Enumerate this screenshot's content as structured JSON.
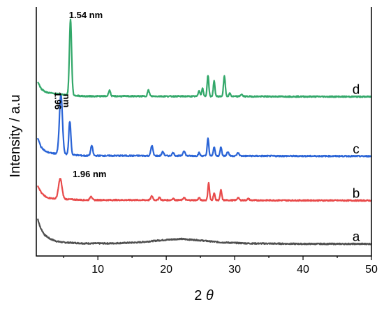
{
  "chart_data": {
    "type": "line",
    "xlabel_prefix": "2 ",
    "xlabel_symbol": "θ",
    "ylabel": "Intensity / a.u",
    "xlim": [
      1,
      50
    ],
    "xticks": [
      10,
      20,
      30,
      40,
      50
    ],
    "y_ticks_shown": false,
    "series": [
      {
        "name": "a",
        "color": "#505050",
        "baseline": 0.0,
        "noise": 0.12,
        "points": [
          [
            1.2,
            2.5
          ],
          [
            1.6,
            1.6
          ],
          [
            2.2,
            0.9
          ],
          [
            3,
            0.5
          ],
          [
            4,
            0.25
          ],
          [
            5,
            0.15
          ],
          [
            8,
            0.05
          ],
          [
            12,
            0.05
          ],
          [
            16,
            0.15
          ],
          [
            19,
            0.35
          ],
          [
            22,
            0.5
          ],
          [
            25,
            0.35
          ],
          [
            28,
            0.15
          ],
          [
            32,
            0.05
          ],
          [
            40,
            0.0
          ],
          [
            50,
            0.0
          ]
        ],
        "peaks": []
      },
      {
        "name": "b",
        "color": "#e84a4a",
        "baseline": 4.3,
        "noise": 0.12,
        "points": [
          [
            1.2,
            1.5
          ],
          [
            1.8,
            0.7
          ],
          [
            2.5,
            0.3
          ],
          [
            3.5,
            0.2
          ],
          [
            8,
            0.05
          ],
          [
            15,
            0.05
          ],
          [
            50,
            0.0
          ]
        ],
        "peaks": [
          [
            4.5,
            2.0,
            0.25
          ],
          [
            9.0,
            0.4,
            0.15
          ],
          [
            17.9,
            0.4,
            0.15
          ],
          [
            19.0,
            0.3,
            0.12
          ],
          [
            21.0,
            0.15,
            0.15
          ],
          [
            22.6,
            0.25,
            0.15
          ],
          [
            24.8,
            0.25,
            0.12
          ],
          [
            26.2,
            1.7,
            0.12
          ],
          [
            27.0,
            0.7,
            0.12
          ],
          [
            28.0,
            1.0,
            0.12
          ],
          [
            30.5,
            0.25,
            0.15
          ],
          [
            32.0,
            0.15,
            0.15
          ]
        ]
      },
      {
        "name": "c",
        "color": "#2a64d6",
        "baseline": 8.7,
        "noise": 0.12,
        "points": [
          [
            1.2,
            1.8
          ],
          [
            1.7,
            0.9
          ],
          [
            2.4,
            0.45
          ],
          [
            3.2,
            0.3
          ],
          [
            8,
            0.05
          ],
          [
            15,
            0.05
          ],
          [
            50,
            0.0
          ]
        ],
        "peaks": [
          [
            4.6,
            5.9,
            0.22
          ],
          [
            5.9,
            3.3,
            0.15
          ],
          [
            9.1,
            1.0,
            0.15
          ],
          [
            17.9,
            1.0,
            0.15
          ],
          [
            19.5,
            0.4,
            0.15
          ],
          [
            21.0,
            0.3,
            0.15
          ],
          [
            22.6,
            0.5,
            0.15
          ],
          [
            24.8,
            0.3,
            0.12
          ],
          [
            26.1,
            1.7,
            0.12
          ],
          [
            27.0,
            0.9,
            0.12
          ],
          [
            28.0,
            0.9,
            0.12
          ],
          [
            29.0,
            0.4,
            0.15
          ],
          [
            30.5,
            0.3,
            0.15
          ]
        ]
      },
      {
        "name": "d",
        "color": "#33a86a",
        "baseline": 14.6,
        "noise": 0.12,
        "points": [
          [
            1.2,
            1.5
          ],
          [
            1.7,
            0.8
          ],
          [
            2.4,
            0.45
          ],
          [
            3.2,
            0.35
          ],
          [
            5,
            0.2
          ],
          [
            8,
            0.05
          ],
          [
            15,
            0.05
          ],
          [
            50,
            0.0
          ]
        ],
        "peaks": [
          [
            6.0,
            7.5,
            0.16
          ],
          [
            11.7,
            0.6,
            0.14
          ],
          [
            17.4,
            0.6,
            0.14
          ],
          [
            24.8,
            0.6,
            0.12
          ],
          [
            25.3,
            0.8,
            0.12
          ],
          [
            26.1,
            2.1,
            0.12
          ],
          [
            27.0,
            1.5,
            0.12
          ],
          [
            28.5,
            2.0,
            0.13
          ],
          [
            29.3,
            0.3,
            0.12
          ],
          [
            31.0,
            0.2,
            0.15
          ]
        ]
      }
    ],
    "ylim": [
      -1.2,
      23.5
    ],
    "annotations": [
      {
        "text": "1.54 nm",
        "x": 6.0,
        "series": "d",
        "rotate": false
      },
      {
        "text": "1.96",
        "x": 3.7,
        "series": "c",
        "rotate": true
      },
      {
        "text": "nm",
        "x": 5.0,
        "series": "c",
        "rotate": true
      },
      {
        "text": "1.96 nm",
        "x": 4.5,
        "series": "b",
        "rotate": false
      }
    ]
  }
}
